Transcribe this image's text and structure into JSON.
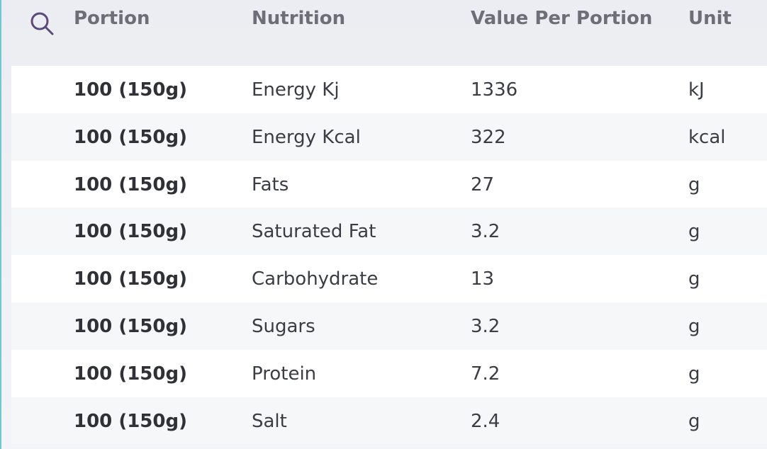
{
  "header": {
    "portion": "Portion",
    "nutrition": "Nutrition",
    "value": "Value Per Portion",
    "unit": "Unit",
    "search_icon": "search-icon"
  },
  "rows": [
    {
      "portion": "100 (150g)",
      "nutrition": "Energy Kj",
      "value": "1336",
      "unit": "kJ"
    },
    {
      "portion": "100 (150g)",
      "nutrition": "Energy Kcal",
      "value": "322",
      "unit": "kcal"
    },
    {
      "portion": "100 (150g)",
      "nutrition": "Fats",
      "value": "27",
      "unit": "g"
    },
    {
      "portion": "100 (150g)",
      "nutrition": "Saturated Fat",
      "value": "3.2",
      "unit": "g"
    },
    {
      "portion": "100 (150g)",
      "nutrition": "Carbohydrate",
      "value": "13",
      "unit": "g"
    },
    {
      "portion": "100 (150g)",
      "nutrition": "Sugars",
      "value": "3.2",
      "unit": "g"
    },
    {
      "portion": "100 (150g)",
      "nutrition": "Protein",
      "value": "7.2",
      "unit": "g"
    },
    {
      "portion": "100 (150g)",
      "nutrition": "Salt",
      "value": "2.4",
      "unit": "g"
    }
  ],
  "colors": {
    "icon": "#5b4a7a",
    "header_text": "#6d6f78",
    "accent_border": "#6fc7cf"
  }
}
